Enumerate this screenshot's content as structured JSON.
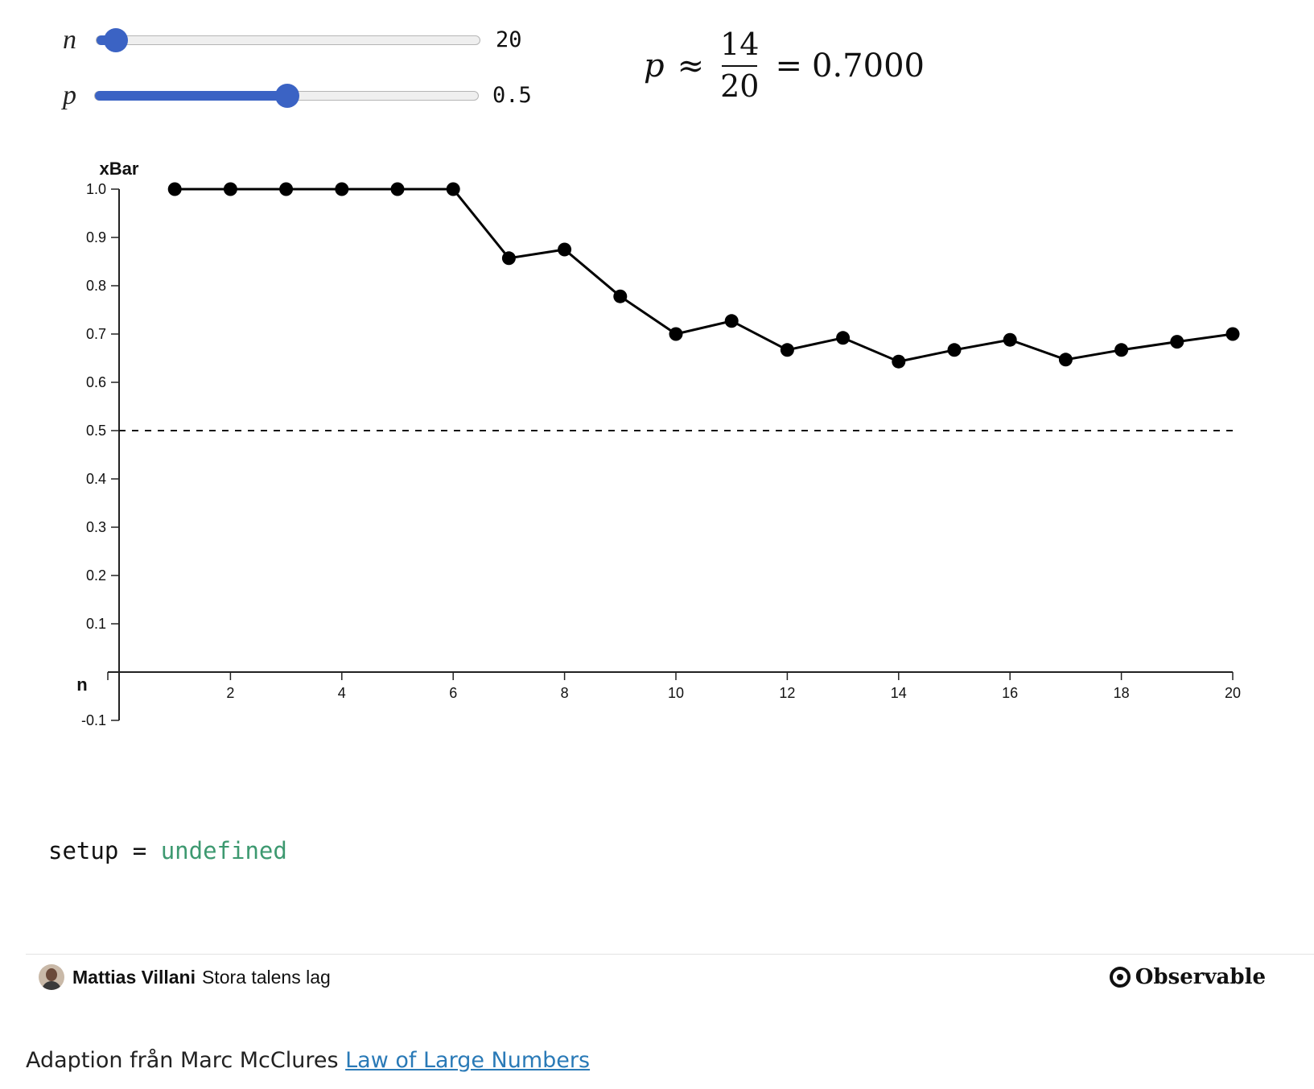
{
  "controls": {
    "n": {
      "label": "n",
      "value": "20",
      "fraction": 0.05
    },
    "p": {
      "label": "p",
      "value": "0.5",
      "fraction": 0.5
    }
  },
  "estimate": {
    "symbol": "p",
    "approx": "≈",
    "numerator": "14",
    "denominator": "20",
    "equals": "=",
    "result": "0.7000"
  },
  "chart_data": {
    "type": "line",
    "ylabel": "xBar",
    "xlabel": "n",
    "x": [
      1,
      2,
      3,
      4,
      5,
      6,
      7,
      8,
      9,
      10,
      11,
      12,
      13,
      14,
      15,
      16,
      17,
      18,
      19,
      20
    ],
    "values": [
      1.0,
      1.0,
      1.0,
      1.0,
      1.0,
      1.0,
      0.857,
      0.875,
      0.778,
      0.7,
      0.727,
      0.667,
      0.692,
      0.643,
      0.667,
      0.688,
      0.647,
      0.667,
      0.684,
      0.7
    ],
    "reference_line": 0.5,
    "xlim": [
      0,
      20
    ],
    "ylim": [
      -0.1,
      1.0
    ],
    "xticks": [
      2,
      4,
      6,
      8,
      10,
      12,
      14,
      16,
      18,
      20
    ],
    "yticks": [
      1.0,
      0.9,
      0.8,
      0.7,
      0.6,
      0.5,
      0.4,
      0.3,
      0.2,
      0.1,
      -0.1
    ],
    "grid": false
  },
  "setup": {
    "name": "setup",
    "op": "=",
    "value": "undefined"
  },
  "footer": {
    "author": "Mattias Villani",
    "title": "Stora talens lag",
    "brand": "Observable",
    "adaption_prefix": "Adaption från Marc McClures",
    "link_text": "Law of Large Numbers"
  }
}
